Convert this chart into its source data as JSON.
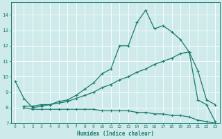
{
  "xlabel": "Humidex (Indice chaleur)",
  "bg_color": "#ceeaea",
  "grid_color": "#ffffff",
  "line_color": "#1a7a6e",
  "xlim": [
    -0.5,
    23.5
  ],
  "ylim": [
    7.0,
    14.8
  ],
  "yticks": [
    7,
    8,
    9,
    10,
    11,
    12,
    13,
    14
  ],
  "xticks": [
    0,
    1,
    2,
    3,
    4,
    5,
    6,
    7,
    8,
    9,
    10,
    11,
    12,
    13,
    14,
    15,
    16,
    17,
    18,
    19,
    20,
    21,
    22,
    23
  ],
  "line1_x": [
    0,
    1,
    2,
    3,
    4,
    5,
    6,
    7,
    8,
    9,
    10,
    11,
    12,
    13,
    14,
    15,
    16,
    17,
    18,
    19,
    20,
    21,
    22,
    23
  ],
  "line1_y": [
    9.7,
    8.6,
    8.0,
    8.1,
    8.2,
    8.4,
    8.5,
    8.8,
    9.2,
    9.6,
    10.2,
    10.5,
    12.0,
    12.0,
    13.5,
    14.3,
    13.1,
    13.3,
    12.9,
    12.4,
    11.6,
    10.4,
    8.5,
    8.2
  ],
  "line2_x": [
    1,
    2,
    3,
    4,
    5,
    6,
    7,
    8,
    9,
    10,
    11,
    12,
    13,
    14,
    15,
    16,
    17,
    18,
    19,
    20,
    21,
    22,
    23
  ],
  "line2_y": [
    8.1,
    8.1,
    8.2,
    8.2,
    8.3,
    8.4,
    8.6,
    8.8,
    9.0,
    9.3,
    9.5,
    9.8,
    10.0,
    10.3,
    10.5,
    10.8,
    11.0,
    11.2,
    11.5,
    11.6,
    8.5,
    8.2,
    7.1
  ],
  "line3_x": [
    1,
    2,
    3,
    4,
    5,
    6,
    7,
    8,
    9,
    10,
    11,
    12,
    13,
    14,
    15,
    16,
    17,
    18,
    19,
    20,
    21,
    22,
    23
  ],
  "line3_y": [
    8.0,
    7.9,
    7.9,
    7.9,
    7.9,
    7.9,
    7.9,
    7.9,
    7.9,
    7.8,
    7.8,
    7.8,
    7.8,
    7.7,
    7.7,
    7.6,
    7.6,
    7.5,
    7.5,
    7.4,
    7.2,
    7.1,
    7.0
  ]
}
